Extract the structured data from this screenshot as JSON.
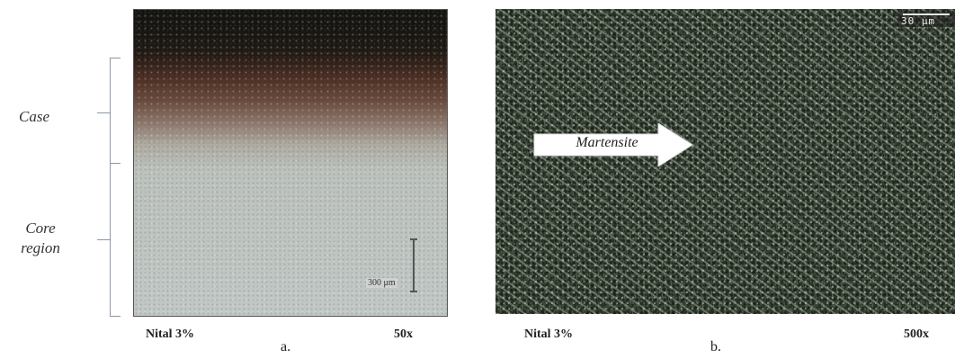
{
  "left_labels": {
    "case": "Case",
    "core_line1": "Core",
    "core_line2": "region"
  },
  "panel_a": {
    "scale_text": "300 μm",
    "etchant": "Nital 3%",
    "magnification": "50x",
    "letter": "a."
  },
  "panel_b": {
    "scale_text": "30 μm",
    "annotation": "Martensite",
    "etchant": "Nital 3%",
    "magnification": "500x",
    "letter": "b."
  }
}
